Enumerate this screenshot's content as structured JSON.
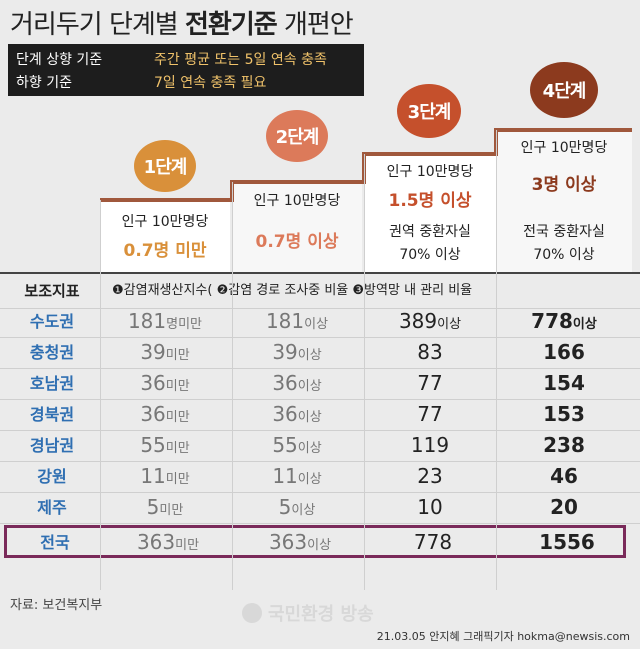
{
  "title": {
    "light1": "거리두기",
    "light2": "단계별",
    "bold": "전환기준",
    "light3": "개편안"
  },
  "criteria": [
    {
      "label": "단계 상향 기준",
      "value": "주간 평균 또는 5일 연속 충족"
    },
    {
      "label": "하향 기준",
      "value": "7일 연속 충족 필요"
    }
  ],
  "colors": {
    "stage1": "#d9903a",
    "stage2": "#dc7a5a",
    "stage3": "#c5502c",
    "stage4": "#8c3a1e",
    "stair": "#a0583c",
    "region": "#2f6fb2",
    "highlight": "#7a2a5a"
  },
  "stages": [
    {
      "badge": "1단계",
      "line1": "인구 10만명당",
      "value": "0.7명 미만",
      "line3": "",
      "line4": ""
    },
    {
      "badge": "2단계",
      "line1": "인구 10만명당",
      "value": "0.7명 이상",
      "line3": "",
      "line4": ""
    },
    {
      "badge": "3단계",
      "line1": "인구 10만명당",
      "value": "1.5명 이상",
      "line3": "권역 중환자실",
      "line4": "70% 이상"
    },
    {
      "badge": "4단계",
      "line1": "인구 10만명당",
      "value": "3명 이상",
      "line3": "전국 중환자실",
      "line4": "70% 이상"
    }
  ],
  "aux": {
    "label": "보조지표",
    "text": "❶감염재생산지수( ❷감염 경로 조사중 비율 ❸방역망 내 관리 비율"
  },
  "chart_data": {
    "type": "table",
    "columns": [
      "1단계",
      "2단계",
      "3단계",
      "4단계"
    ],
    "rows": [
      {
        "region": "수도권",
        "s1": "181",
        "s1_sfx": "명미만",
        "s2": "181",
        "s2_sfx": "이상",
        "s3": "389",
        "s3_sfx": "이상",
        "s4": "778",
        "s4_sfx": "이상"
      },
      {
        "region": "충청권",
        "s1": "39",
        "s1_sfx": "미만",
        "s2": "39",
        "s2_sfx": "이상",
        "s3": "83",
        "s3_sfx": "",
        "s4": "166",
        "s4_sfx": ""
      },
      {
        "region": "호남권",
        "s1": "36",
        "s1_sfx": "미만",
        "s2": "36",
        "s2_sfx": "이상",
        "s3": "77",
        "s3_sfx": "",
        "s4": "154",
        "s4_sfx": ""
      },
      {
        "region": "경북권",
        "s1": "36",
        "s1_sfx": "미만",
        "s2": "36",
        "s2_sfx": "이상",
        "s3": "77",
        "s3_sfx": "",
        "s4": "153",
        "s4_sfx": ""
      },
      {
        "region": "경남권",
        "s1": "55",
        "s1_sfx": "미만",
        "s2": "55",
        "s2_sfx": "이상",
        "s3": "119",
        "s3_sfx": "",
        "s4": "238",
        "s4_sfx": ""
      },
      {
        "region": "강원",
        "s1": "11",
        "s1_sfx": "미만",
        "s2": "11",
        "s2_sfx": "이상",
        "s3": "23",
        "s3_sfx": "",
        "s4": "46",
        "s4_sfx": ""
      },
      {
        "region": "제주",
        "s1": "5",
        "s1_sfx": "미만",
        "s2": "5",
        "s2_sfx": "이상",
        "s3": "10",
        "s3_sfx": "",
        "s4": "20",
        "s4_sfx": ""
      },
      {
        "region": "전국",
        "s1": "363",
        "s1_sfx": "미만",
        "s2": "363",
        "s2_sfx": "이상",
        "s3": "778",
        "s3_sfx": "",
        "s4": "1556",
        "s4_sfx": ""
      }
    ]
  },
  "source": "자료: 보건복지부",
  "watermark": "국민환경 방송",
  "credit": "21.03.05 안지혜 그래픽기자 hokma@newsis.com"
}
